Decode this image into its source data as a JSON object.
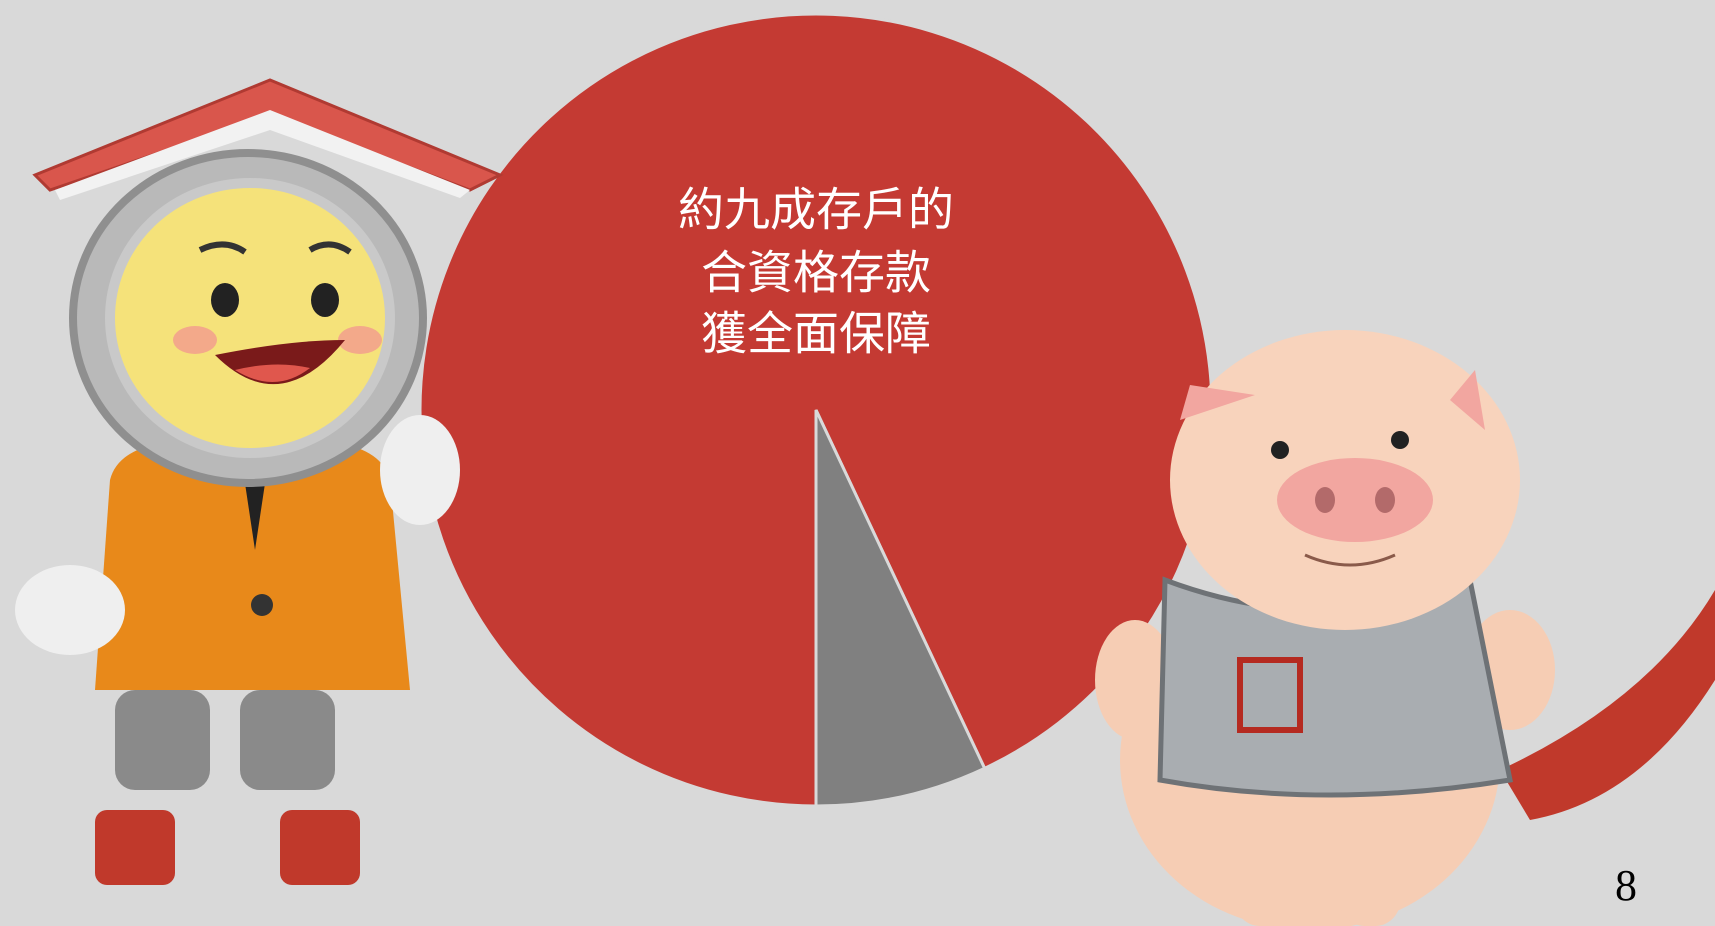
{
  "chart_data": {
    "type": "pie",
    "annotation": [
      "約九成存戶的",
      "合資格存款",
      "獲全面保障"
    ],
    "values": [
      93,
      7
    ],
    "colors": [
      "#c43a33",
      "#808080"
    ]
  },
  "page_number": "8"
}
